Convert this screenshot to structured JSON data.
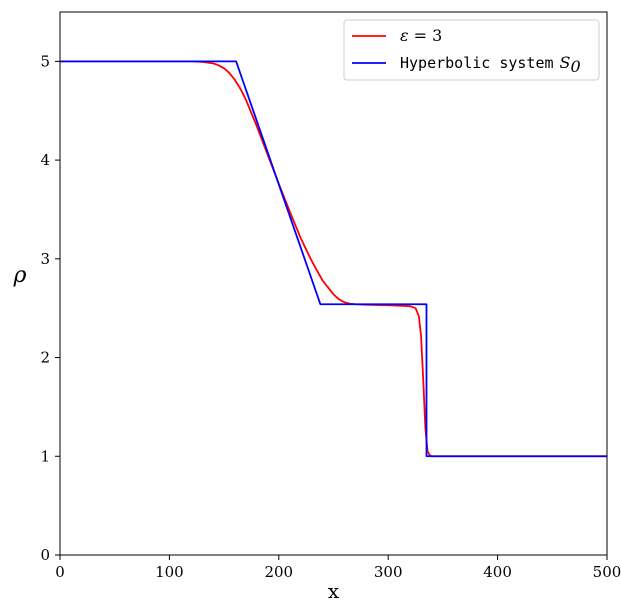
{
  "chart_data": {
    "type": "line",
    "xlabel": "x",
    "ylabel": "ρ",
    "xlim": [
      0,
      500
    ],
    "ylim": [
      0,
      5.5
    ],
    "xticks": [
      0,
      100,
      200,
      300,
      400,
      500
    ],
    "yticks": [
      0,
      1,
      2,
      3,
      4,
      5
    ],
    "grid": false,
    "legend_position": "top-right",
    "series": [
      {
        "name": "ε = 3",
        "color": "#ff0000",
        "x": [
          0,
          120,
          130,
          140,
          145,
          150,
          155,
          160,
          165,
          170,
          180,
          190,
          200,
          210,
          220,
          230,
          240,
          250,
          255,
          260,
          265,
          270,
          280,
          300,
          320,
          325,
          328,
          330,
          332,
          334,
          336,
          338,
          340,
          345,
          350,
          400,
          500
        ],
        "y": [
          5.0,
          5.0,
          4.995,
          4.98,
          4.96,
          4.93,
          4.88,
          4.81,
          4.72,
          4.61,
          4.34,
          4.05,
          3.76,
          3.48,
          3.21,
          2.98,
          2.78,
          2.64,
          2.59,
          2.56,
          2.545,
          2.54,
          2.535,
          2.53,
          2.52,
          2.5,
          2.42,
          2.22,
          1.78,
          1.28,
          1.05,
          1.01,
          1.0,
          1.0,
          1.0,
          1.0,
          1.0
        ]
      },
      {
        "name": "Hyperbolic system S0",
        "legend_text": "Hyperbolic system",
        "legend_math": "S",
        "legend_sub": "0",
        "color": "#0000ff",
        "x": [
          0,
          161,
          238,
          335,
          335,
          500
        ],
        "y": [
          5.0,
          5.0,
          2.54,
          2.54,
          1.0,
          1.0
        ]
      }
    ],
    "legend": {
      "eps_symbol": "ε",
      "eps_eq": " = 3"
    }
  }
}
